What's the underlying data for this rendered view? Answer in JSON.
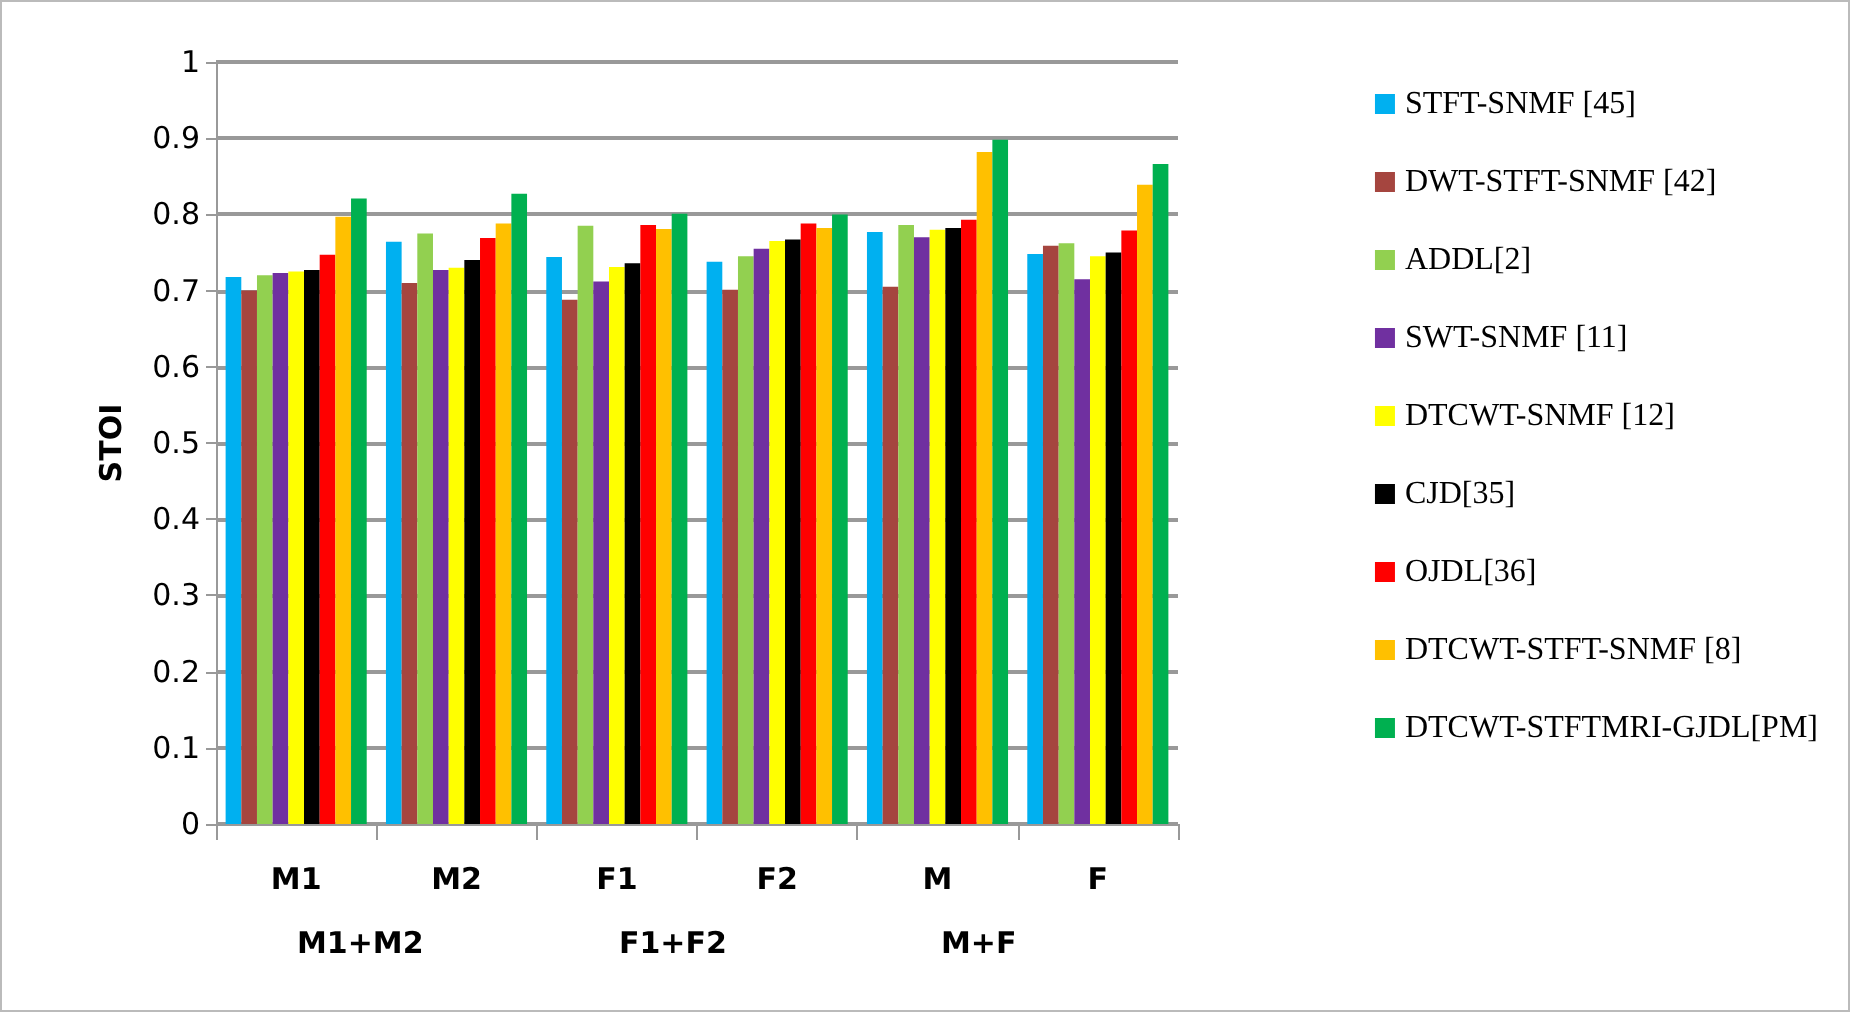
{
  "chart_data": {
    "type": "bar",
    "ylabel": "STOI",
    "categories": [
      "M1",
      "M2",
      "F1",
      "F2",
      "M",
      "F"
    ],
    "annotations": [
      "M1+M2",
      "F1+F2",
      "M+F"
    ],
    "ylim": [
      0,
      1
    ],
    "yticks": [
      0,
      0.1,
      0.2,
      0.3,
      0.4,
      0.5,
      0.6,
      0.7,
      0.8,
      0.9,
      1
    ],
    "grid": "y",
    "legend": "right",
    "series": [
      {
        "name": "STFT-SNMF [45]",
        "color": "#00b0f0",
        "values": [
          0.718,
          0.764,
          0.744,
          0.738,
          0.777,
          0.748
        ]
      },
      {
        "name": "DWT-STFT-SNMF [42]",
        "color": "#a5453f",
        "values": [
          0.7,
          0.71,
          0.688,
          0.701,
          0.705,
          0.759
        ]
      },
      {
        "name": "ADDL[2]",
        "color": "#92d050",
        "values": [
          0.72,
          0.775,
          0.785,
          0.745,
          0.786,
          0.762
        ]
      },
      {
        "name": "SWT-SNMF [11]",
        "color": "#7030a0",
        "values": [
          0.723,
          0.727,
          0.712,
          0.755,
          0.77,
          0.715
        ]
      },
      {
        "name": "DTCWT-SNMF [12]",
        "color": "#ffff00",
        "values": [
          0.725,
          0.73,
          0.731,
          0.765,
          0.78,
          0.745
        ]
      },
      {
        "name": "CJD[35]",
        "color": "#000000",
        "values": [
          0.727,
          0.74,
          0.736,
          0.767,
          0.782,
          0.75
        ]
      },
      {
        "name": "OJDL[36]",
        "color": "#ff0000",
        "values": [
          0.747,
          0.769,
          0.786,
          0.788,
          0.793,
          0.779
        ]
      },
      {
        "name": "DTCWT-STFT-SNMF [8]",
        "color": "#ffc000",
        "values": [
          0.797,
          0.788,
          0.781,
          0.782,
          0.882,
          0.839
        ]
      },
      {
        "name": "DTCWT-STFTMRI-GJDL[PM]",
        "color": "#00b050",
        "values": [
          0.821,
          0.827,
          0.801,
          0.8,
          0.898,
          0.866
        ]
      }
    ]
  }
}
